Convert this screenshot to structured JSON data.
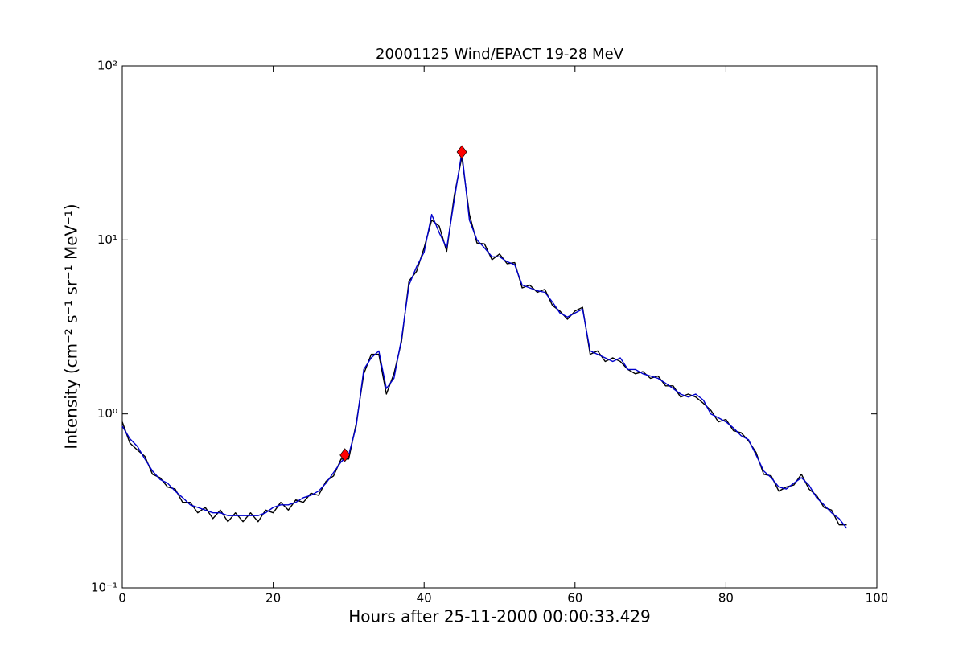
{
  "chart_data": {
    "type": "line",
    "title": "20001125 Wind/EPACT 19-28 MeV",
    "xlabel": "Hours after 25-11-2000 00:00:33.429",
    "ylabel": "Intensity (cm⁻² s⁻¹ sr⁻¹ MeV⁻¹)",
    "yscale": "log",
    "xlim": [
      0,
      100
    ],
    "ylim": [
      0.1,
      100
    ],
    "xticks": [
      0,
      20,
      40,
      60,
      80,
      100
    ],
    "yticks": [
      {
        "value": 0.1,
        "label": "10⁻¹"
      },
      {
        "value": 1,
        "label": "10⁰"
      },
      {
        "value": 10,
        "label": "10¹"
      },
      {
        "value": 100,
        "label": "10²"
      }
    ],
    "x": [
      0,
      1,
      2,
      3,
      4,
      5,
      6,
      7,
      8,
      9,
      10,
      11,
      12,
      13,
      14,
      15,
      16,
      17,
      18,
      19,
      20,
      21,
      22,
      23,
      24,
      25,
      26,
      27,
      28,
      29,
      30,
      31,
      32,
      33,
      34,
      35,
      36,
      37,
      38,
      39,
      40,
      41,
      42,
      43,
      44,
      45,
      46,
      47,
      48,
      49,
      50,
      51,
      52,
      53,
      54,
      55,
      56,
      57,
      58,
      59,
      60,
      61,
      62,
      63,
      64,
      65,
      66,
      67,
      68,
      69,
      70,
      71,
      72,
      73,
      74,
      75,
      76,
      77,
      78,
      79,
      80,
      81,
      82,
      83,
      84,
      85,
      86,
      87,
      88,
      89,
      90,
      91,
      92,
      93,
      94,
      95,
      96
    ],
    "series": [
      {
        "color": "#000000",
        "values": [
          0.9,
          0.68,
          0.62,
          0.57,
          0.45,
          0.43,
          0.38,
          0.37,
          0.31,
          0.31,
          0.27,
          0.29,
          0.25,
          0.28,
          0.24,
          0.27,
          0.24,
          0.27,
          0.24,
          0.28,
          0.27,
          0.31,
          0.28,
          0.32,
          0.31,
          0.35,
          0.34,
          0.41,
          0.44,
          0.55,
          0.55,
          0.88,
          1.7,
          2.2,
          2.2,
          1.3,
          1.7,
          2.6,
          5.8,
          6.6,
          9,
          13,
          12,
          8.6,
          18,
          30,
          14,
          9.6,
          9.5,
          7.7,
          8.3,
          7.3,
          7.4,
          5.3,
          5.5,
          5.0,
          5.2,
          4.2,
          3.9,
          3.5,
          3.9,
          4.1,
          2.2,
          2.3,
          2.0,
          2.1,
          2.0,
          1.8,
          1.7,
          1.75,
          1.6,
          1.65,
          1.45,
          1.45,
          1.25,
          1.3,
          1.25,
          1.15,
          1.05,
          0.9,
          0.93,
          0.8,
          0.78,
          0.7,
          0.6,
          0.45,
          0.44,
          0.36,
          0.38,
          0.39,
          0.45,
          0.37,
          0.34,
          0.29,
          0.28,
          0.23,
          0.23
        ]
      },
      {
        "color": "#0000cc",
        "values": [
          0.85,
          0.72,
          0.65,
          0.55,
          0.47,
          0.42,
          0.4,
          0.36,
          0.33,
          0.3,
          0.29,
          0.28,
          0.27,
          0.27,
          0.26,
          0.26,
          0.26,
          0.26,
          0.26,
          0.27,
          0.29,
          0.3,
          0.3,
          0.31,
          0.33,
          0.34,
          0.36,
          0.4,
          0.46,
          0.53,
          0.58,
          0.85,
          1.8,
          2.1,
          2.3,
          1.4,
          1.6,
          2.7,
          5.5,
          7,
          8.5,
          14,
          11,
          9,
          17,
          32,
          13,
          10,
          9,
          8,
          8,
          7.5,
          7.2,
          5.5,
          5.3,
          5.1,
          5,
          4.4,
          3.8,
          3.6,
          3.8,
          4,
          2.3,
          2.2,
          2.1,
          2,
          2.1,
          1.8,
          1.8,
          1.7,
          1.65,
          1.6,
          1.5,
          1.4,
          1.3,
          1.25,
          1.3,
          1.2,
          1,
          0.95,
          0.9,
          0.83,
          0.75,
          0.71,
          0.58,
          0.47,
          0.43,
          0.38,
          0.37,
          0.4,
          0.43,
          0.39,
          0.33,
          0.3,
          0.27,
          0.25,
          0.22
        ]
      }
    ],
    "markers": {
      "color": "#ff0000",
      "x": [
        29.5,
        45
      ],
      "values": [
        0.58,
        32
      ]
    }
  }
}
